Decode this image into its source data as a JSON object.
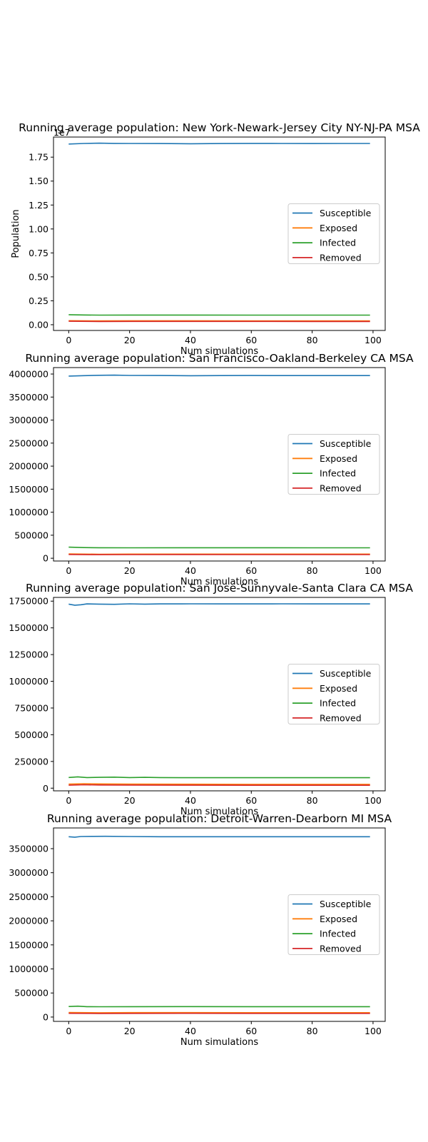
{
  "chart_data": [
    {
      "type": "line",
      "title": "Running average population: New York-Newark-Jersey City NY-NJ-PA MSA",
      "xlabel": "Num simulations",
      "ylabel": "Population",
      "offset_label": "1e7",
      "xlim": [
        -5,
        104
      ],
      "ylim": [
        -0.06,
        1.96
      ],
      "xticks": [
        0,
        20,
        40,
        60,
        80,
        100
      ],
      "yticks": [
        0.0,
        0.25,
        0.5,
        0.75,
        1.0,
        1.25,
        1.5,
        1.75
      ],
      "ytick_labels": [
        "0.00",
        "0.25",
        "0.50",
        "0.75",
        "1.00",
        "1.25",
        "1.50",
        "1.75"
      ],
      "legend_position": "center-right",
      "x_range": [
        0,
        99
      ],
      "series": [
        {
          "name": "Susceptible",
          "color": "#1f77b4",
          "points": [
            [
              0,
              1.887
            ],
            [
              5,
              1.893
            ],
            [
              10,
              1.896
            ],
            [
              15,
              1.894
            ],
            [
              20,
              1.893
            ],
            [
              30,
              1.892
            ],
            [
              40,
              1.89
            ],
            [
              50,
              1.892
            ],
            [
              60,
              1.894
            ],
            [
              70,
              1.893
            ],
            [
              80,
              1.892
            ],
            [
              90,
              1.893
            ],
            [
              99,
              1.893
            ]
          ]
        },
        {
          "name": "Exposed",
          "color": "#ff7f0e",
          "points": [
            [
              0,
              0.042
            ],
            [
              10,
              0.04
            ],
            [
              20,
              0.041
            ],
            [
              40,
              0.041
            ],
            [
              60,
              0.04
            ],
            [
              80,
              0.04
            ],
            [
              99,
              0.04
            ]
          ]
        },
        {
          "name": "Infected",
          "color": "#2ca02c",
          "points": [
            [
              0,
              0.105
            ],
            [
              5,
              0.102
            ],
            [
              10,
              0.1
            ],
            [
              20,
              0.101
            ],
            [
              40,
              0.101
            ],
            [
              60,
              0.1
            ],
            [
              80,
              0.1
            ],
            [
              99,
              0.1
            ]
          ]
        },
        {
          "name": "Removed",
          "color": "#d62728",
          "points": [
            [
              0,
              0.036
            ],
            [
              10,
              0.034
            ],
            [
              20,
              0.035
            ],
            [
              40,
              0.035
            ],
            [
              60,
              0.035
            ],
            [
              80,
              0.034
            ],
            [
              99,
              0.034
            ]
          ]
        }
      ]
    },
    {
      "type": "line",
      "title": "Running average population: San Francisco-Oakland-Berkeley CA MSA",
      "xlabel": "Num simulations",
      "ylabel": "",
      "xlim": [
        -5,
        104
      ],
      "ylim": [
        -60000,
        4140000
      ],
      "xticks": [
        0,
        20,
        40,
        60,
        80,
        100
      ],
      "yticks": [
        0,
        500000,
        1000000,
        1500000,
        2000000,
        2500000,
        3000000,
        3500000,
        4000000
      ],
      "ytick_labels": [
        "0",
        "500000",
        "1000000",
        "1500000",
        "2000000",
        "2500000",
        "3000000",
        "3500000",
        "4000000"
      ],
      "legend_position": "center-right",
      "x_range": [
        0,
        99
      ],
      "series": [
        {
          "name": "Susceptible",
          "color": "#1f77b4",
          "points": [
            [
              0,
              3955000
            ],
            [
              5,
              3965000
            ],
            [
              10,
              3972000
            ],
            [
              15,
              3975000
            ],
            [
              20,
              3970000
            ],
            [
              30,
              3968000
            ],
            [
              40,
              3963000
            ],
            [
              50,
              3966000
            ],
            [
              60,
              3968000
            ],
            [
              70,
              3967000
            ],
            [
              80,
              3966000
            ],
            [
              90,
              3967000
            ],
            [
              99,
              3967000
            ]
          ]
        },
        {
          "name": "Exposed",
          "color": "#ff7f0e",
          "points": [
            [
              0,
              95000
            ],
            [
              10,
              88000
            ],
            [
              20,
              90000
            ],
            [
              40,
              91000
            ],
            [
              60,
              90000
            ],
            [
              80,
              90000
            ],
            [
              99,
              90000
            ]
          ]
        },
        {
          "name": "Infected",
          "color": "#2ca02c",
          "points": [
            [
              0,
              240000
            ],
            [
              5,
              232000
            ],
            [
              10,
              228000
            ],
            [
              20,
              226000
            ],
            [
              40,
              228000
            ],
            [
              60,
              228000
            ],
            [
              80,
              226000
            ],
            [
              99,
              226000
            ]
          ]
        },
        {
          "name": "Removed",
          "color": "#d62728",
          "points": [
            [
              0,
              82000
            ],
            [
              10,
              78000
            ],
            [
              20,
              80000
            ],
            [
              40,
              81000
            ],
            [
              60,
              80000
            ],
            [
              80,
              80000
            ],
            [
              99,
              80000
            ]
          ]
        }
      ]
    },
    {
      "type": "line",
      "title": "Running average population: San Jose-Sunnyvale-Santa Clara CA MSA",
      "xlabel": "Num simulations",
      "ylabel": "",
      "xlim": [
        -5,
        104
      ],
      "ylim": [
        -25000,
        1785000
      ],
      "xticks": [
        0,
        20,
        40,
        60,
        80,
        100
      ],
      "yticks": [
        0,
        250000,
        500000,
        750000,
        1000000,
        1250000,
        1500000,
        1750000
      ],
      "ytick_labels": [
        "0",
        "250000",
        "500000",
        "750000",
        "1000000",
        "1250000",
        "1500000",
        "1750000"
      ],
      "legend_position": "center-right",
      "x_range": [
        0,
        99
      ],
      "series": [
        {
          "name": "Susceptible",
          "color": "#1f77b4",
          "points": [
            [
              0,
              1722000
            ],
            [
              2,
              1712000
            ],
            [
              4,
              1716000
            ],
            [
              6,
              1724000
            ],
            [
              10,
              1722000
            ],
            [
              15,
              1720000
            ],
            [
              20,
              1725000
            ],
            [
              25,
              1722000
            ],
            [
              30,
              1724000
            ],
            [
              40,
              1725000
            ],
            [
              50,
              1724000
            ],
            [
              60,
              1724000
            ],
            [
              70,
              1725000
            ],
            [
              80,
              1724000
            ],
            [
              90,
              1724000
            ],
            [
              99,
              1724000
            ]
          ]
        },
        {
          "name": "Exposed",
          "color": "#ff7f0e",
          "points": [
            [
              0,
              38000
            ],
            [
              5,
              42000
            ],
            [
              10,
              40000
            ],
            [
              20,
              38000
            ],
            [
              40,
              37000
            ],
            [
              60,
              36000
            ],
            [
              80,
              36000
            ],
            [
              99,
              36000
            ]
          ]
        },
        {
          "name": "Infected",
          "color": "#2ca02c",
          "points": [
            [
              0,
              100000
            ],
            [
              3,
              106000
            ],
            [
              6,
              99000
            ],
            [
              10,
              101000
            ],
            [
              15,
              103000
            ],
            [
              20,
              99000
            ],
            [
              25,
              101000
            ],
            [
              30,
              99000
            ],
            [
              40,
              98000
            ],
            [
              60,
              98000
            ],
            [
              80,
              98000
            ],
            [
              99,
              98000
            ]
          ]
        },
        {
          "name": "Removed",
          "color": "#d62728",
          "points": [
            [
              0,
              28000
            ],
            [
              5,
              32000
            ],
            [
              10,
              30000
            ],
            [
              20,
              29000
            ],
            [
              40,
              28000
            ],
            [
              60,
              27000
            ],
            [
              80,
              27000
            ],
            [
              99,
              27000
            ]
          ]
        }
      ]
    },
    {
      "type": "line",
      "title": "Running average population: Detroit-Warren-Dearborn MI MSA",
      "xlabel": "Num simulations",
      "ylabel": "",
      "xlim": [
        -5,
        104
      ],
      "ylim": [
        -90000,
        3930000
      ],
      "xticks": [
        0,
        20,
        40,
        60,
        80,
        100
      ],
      "yticks": [
        0,
        500000,
        1000000,
        1500000,
        2000000,
        2500000,
        3000000,
        3500000
      ],
      "ytick_labels": [
        "0",
        "500000",
        "1000000",
        "1500000",
        "2000000",
        "2500000",
        "3000000",
        "3500000"
      ],
      "legend_position": "center-right",
      "x_range": [
        0,
        99
      ],
      "series": [
        {
          "name": "Susceptible",
          "color": "#1f77b4",
          "points": [
            [
              0,
              3748000
            ],
            [
              2,
              3738000
            ],
            [
              4,
              3752000
            ],
            [
              8,
              3755000
            ],
            [
              12,
              3756000
            ],
            [
              20,
              3752000
            ],
            [
              30,
              3748000
            ],
            [
              40,
              3747000
            ],
            [
              50,
              3747000
            ],
            [
              60,
              3748000
            ],
            [
              70,
              3747000
            ],
            [
              80,
              3747000
            ],
            [
              90,
              3747000
            ],
            [
              99,
              3747000
            ]
          ]
        },
        {
          "name": "Exposed",
          "color": "#ff7f0e",
          "points": [
            [
              0,
              95000
            ],
            [
              10,
              90000
            ],
            [
              20,
              92000
            ],
            [
              40,
              92000
            ],
            [
              60,
              91000
            ],
            [
              80,
              91000
            ],
            [
              99,
              91000
            ]
          ]
        },
        {
          "name": "Infected",
          "color": "#2ca02c",
          "points": [
            [
              0,
              218000
            ],
            [
              3,
              226000
            ],
            [
              6,
              216000
            ],
            [
              10,
              214000
            ],
            [
              20,
              216000
            ],
            [
              40,
              217000
            ],
            [
              60,
              216000
            ],
            [
              80,
              216000
            ],
            [
              99,
              216000
            ]
          ]
        },
        {
          "name": "Removed",
          "color": "#d62728",
          "points": [
            [
              0,
              78000
            ],
            [
              10,
              74000
            ],
            [
              20,
              76000
            ],
            [
              40,
              77000
            ],
            [
              60,
              76000
            ],
            [
              80,
              76000
            ],
            [
              99,
              76000
            ]
          ]
        }
      ]
    }
  ]
}
